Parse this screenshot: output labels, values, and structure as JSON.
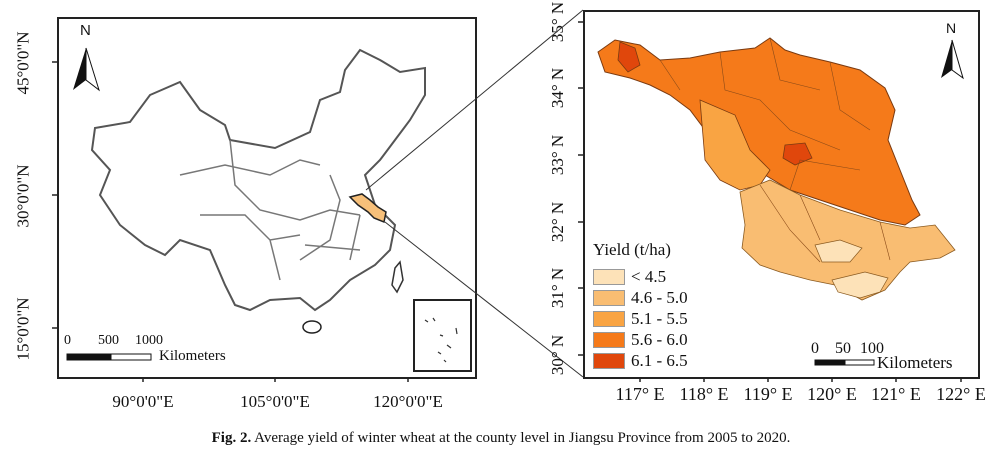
{
  "left_map": {
    "north_label": "N",
    "lat_labels": [
      "45°0'0\"N",
      "30°0'0\"N",
      "15°0'0\"N"
    ],
    "lon_labels": [
      "90°0'0\"E",
      "105°0'0\"E",
      "120°0'0\"E"
    ],
    "scale_ticks": [
      "0",
      "500",
      "1000"
    ],
    "scale_unit": "Kilometers",
    "highlight_color": "#f7c07a"
  },
  "right_map": {
    "north_label": "N",
    "lat_labels": [
      "35° N",
      "34° N",
      "33° N",
      "32° N",
      "31° N",
      "30° N"
    ],
    "lon_labels": [
      "117° E",
      "118° E",
      "119° E",
      "120° E",
      "121° E",
      "122° E"
    ],
    "legend": {
      "title": "Yield (t/ha)",
      "items": [
        {
          "label": "< 4.5",
          "color": "#fde2b8"
        },
        {
          "label": "4.6 - 5.0",
          "color": "#f9bd72"
        },
        {
          "label": "5.1 - 5.5",
          "color": "#f9a443"
        },
        {
          "label": "5.6 - 6.0",
          "color": "#f57a1a"
        },
        {
          "label": "6.1 - 6.5",
          "color": "#e0470c"
        }
      ]
    },
    "scale_ticks": [
      "0",
      "50",
      "100"
    ],
    "scale_unit": "Kilometers"
  },
  "caption": {
    "label": "Fig. 2.",
    "text": " Average yield of winter wheat at the county level in Jiangsu Province from 2005 to 2020."
  }
}
